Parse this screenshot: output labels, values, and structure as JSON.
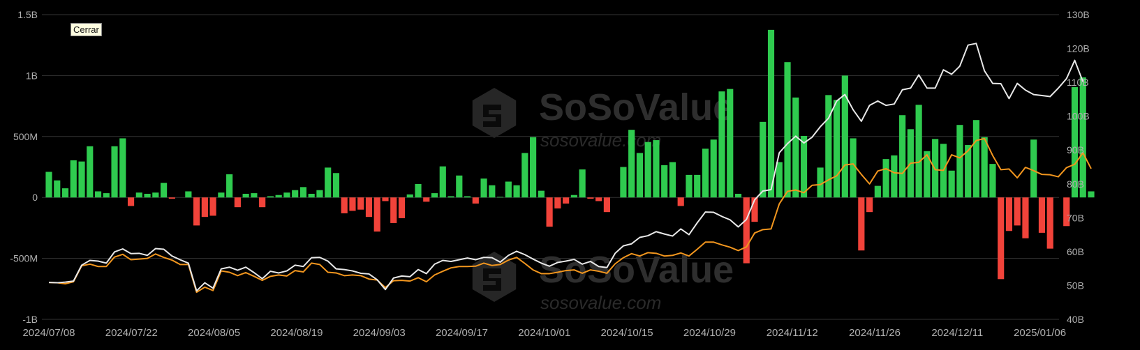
{
  "tooltip": "Cerrar",
  "watermark": {
    "brand": "SoSoValue",
    "site": "sosovalue.com"
  },
  "colors": {
    "inflow": "#2fcb4f",
    "outflow": "#f1433a",
    "white_line": "#e8e8e8",
    "orange_line": "#f2961e",
    "grid": "#333333",
    "background": "#000000"
  },
  "chart_data": {
    "type": "bar",
    "title": "",
    "left_axis": {
      "ticks": [
        "1.5B",
        "1B",
        "500M",
        "0",
        "-500M",
        "-1B"
      ],
      "ylim": [
        -1000000000,
        1500000000
      ]
    },
    "right_axis": {
      "ticks": [
        "130B",
        "120B",
        "110B",
        "100B",
        "90B",
        "80B",
        "70B",
        "60B",
        "50B",
        "40B"
      ],
      "ylim": [
        40000000000,
        130000000000
      ]
    },
    "x_tick_labels": [
      "2024/07/08",
      "2024/07/22",
      "2024/08/05",
      "2024/08/19",
      "2024/09/03",
      "2024/09/17",
      "2024/10/01",
      "2024/10/15",
      "2024/10/29",
      "2024/11/12",
      "2024/11/26",
      "2024/12/11",
      "2025/01/06"
    ],
    "grid": true,
    "series": [
      {
        "kind": "bar",
        "values": [
          210000000.0,
          140000000.0,
          75000000.0,
          305000000.0,
          295000000.0,
          420000000.0,
          50000000.0,
          35000000.0,
          420000000.0,
          485000000.0,
          -70000000.0,
          40000000.0,
          30000000.0,
          40000000.0,
          120000000.0,
          -10000000.0,
          0,
          50000000.0,
          -230000000.0,
          -160000000.0,
          -150000000.0,
          40000000.0,
          190000000.0,
          -80000000.0,
          30000000.0,
          35000000.0,
          -80000000.0,
          10000000.0,
          20000000.0,
          40000000.0,
          60000000.0,
          85000000.0,
          30000000.0,
          60000000.0,
          245000000.0,
          200000000.0,
          -130000000.0,
          -110000000.0,
          -100000000.0,
          -160000000.0,
          -280000000.0,
          -30000000.0,
          -210000000.0,
          -170000000.0,
          25000000.0,
          110000000.0,
          -35000000.0,
          35000000.0,
          255000000.0,
          10000000.0,
          180000000.0,
          10000000.0,
          -50000000.0,
          155000000.0,
          100000000.0,
          5000000.0,
          130000000.0,
          100000000.0,
          365000000.0,
          495000000.0,
          55000000.0,
          -240000000.0,
          -90000000.0,
          -50000000.0,
          20000000.0,
          230000000.0,
          -10000000.0,
          -30000000.0,
          -120000000.0,
          0,
          250000000.0,
          555000000.0,
          365000000.0,
          455000000.0,
          470000000.0,
          265000000.0,
          290000000.0,
          -70000000.0,
          185000000.0,
          185000000.0,
          400000000.0,
          475000000.0,
          870000000.0,
          890000000.0,
          30000000.0,
          -540000000.0,
          -200000000.0,
          620000000.0,
          1375000000.0,
          290000000.0,
          1110000000.0,
          820000000.0,
          505000000.0,
          0,
          245000000.0,
          840000000.0,
          800000000.0,
          1000000000.0,
          485000000.0,
          -435000000.0,
          -120000000.0,
          95000000.0,
          315000000.0,
          345000000.0,
          675000000.0,
          560000000.0,
          760000000.0,
          380000000.0,
          480000000.0,
          440000000.0,
          220000000.0,
          595000000.0,
          430000000.0,
          635000000.0,
          495000000.0,
          275000000.0,
          -670000000.0,
          -275000000.0,
          -230000000.0,
          -335000000.0,
          475000000.0,
          -290000000.0,
          -420000000.0,
          0,
          -235000000.0,
          905000000.0,
          985000000.0,
          50000000.0
        ]
      },
      {
        "kind": "line",
        "axis": "right",
        "values": [
          50.9,
          50.8,
          51,
          51.3,
          56,
          57.4,
          57.2,
          56.6,
          59.9,
          60.8,
          59.4,
          59.5,
          58.9,
          60.9,
          60.7,
          58.7,
          57.6,
          56.6,
          48.4,
          50.8,
          49.2,
          54.9,
          55.4,
          54.5,
          55.4,
          53.8,
          52,
          54.2,
          53.7,
          54.3,
          56,
          55.6,
          58.2,
          58.3,
          57.2,
          54.9,
          54.7,
          54.3,
          53.6,
          53.4,
          51.7,
          48.8,
          52.2,
          52.8,
          52.6,
          54.7,
          53.5,
          56.3,
          57.4,
          57.1,
          57.6,
          58.1,
          57.6,
          58.3,
          58.2,
          56.9,
          58.9,
          60.1,
          59.1,
          57.8,
          56.6,
          55.7,
          56.8,
          57.2,
          57.7,
          56.3,
          57.1,
          55.6,
          55.3,
          59.5,
          61.7,
          62.3,
          64.2,
          64.7,
          65.9,
          65.2,
          64.6,
          66.7,
          65,
          68.5,
          71.7,
          71.6,
          70.4,
          69.4,
          67.3,
          69.5,
          75.3,
          77.9,
          78.3,
          89.2,
          91.9,
          94.1,
          92.1,
          93.8,
          96.9,
          99.4,
          104.5,
          106.4,
          101.9,
          98.5,
          103.2,
          104.5,
          103.2,
          103.6,
          107.8,
          108.3,
          112.2,
          108.3,
          108.3,
          113.7,
          112.4,
          114.8,
          121,
          121.5,
          113.4,
          109.7,
          109.6,
          105.2,
          109.7,
          107.7,
          106.4,
          106.1,
          105.8,
          108.3,
          111.1,
          116.5,
          110.2
        ]
      },
      {
        "kind": "line",
        "axis": "right",
        "values": [
          50.9,
          50.8,
          50.5,
          51.1,
          55.8,
          56.3,
          55.6,
          55.6,
          58.4,
          59.2,
          57.6,
          57.8,
          58,
          59.3,
          58.3,
          57.5,
          56.2,
          56.2,
          48,
          49.5,
          48.5,
          54.3,
          53.9,
          52.9,
          53.8,
          52.7,
          51.5,
          52.7,
          53.1,
          52.8,
          54.4,
          54,
          56.6,
          56.2,
          53.9,
          53.7,
          52.9,
          53.1,
          52.9,
          51.9,
          51.6,
          49.4,
          51.4,
          51.5,
          51.3,
          52.3,
          51.1,
          53.1,
          54.2,
          55.2,
          55.6,
          55.6,
          55.7,
          56.6,
          55.9,
          56.2,
          57.5,
          58.3,
          56.5,
          54.6,
          53.5,
          53.5,
          53.9,
          54.4,
          54.6,
          53.6,
          54.6,
          54.2,
          53.6,
          56.4,
          58.2,
          59.4,
          58.7,
          59.7,
          59.5,
          58.7,
          58.9,
          59.6,
          58.7,
          60.7,
          62.8,
          62.8,
          62,
          61.3,
          60.3,
          61.4,
          65.5,
          66.5,
          66.7,
          74.1,
          77.8,
          78.2,
          77.4,
          79.6,
          79.8,
          81.2,
          82.4,
          85.6,
          85.9,
          82.8,
          80,
          83.8,
          84.5,
          83.3,
          83.1,
          86.1,
          86.4,
          88.6,
          84.2,
          84,
          88.6,
          87.7,
          89.8,
          92.8,
          93.4,
          88.4,
          84.2,
          84.4,
          81.8,
          84.9,
          83.9,
          82.8,
          82.7,
          82.1,
          84.8,
          85.8,
          89.2,
          84.5
        ]
      }
    ]
  }
}
